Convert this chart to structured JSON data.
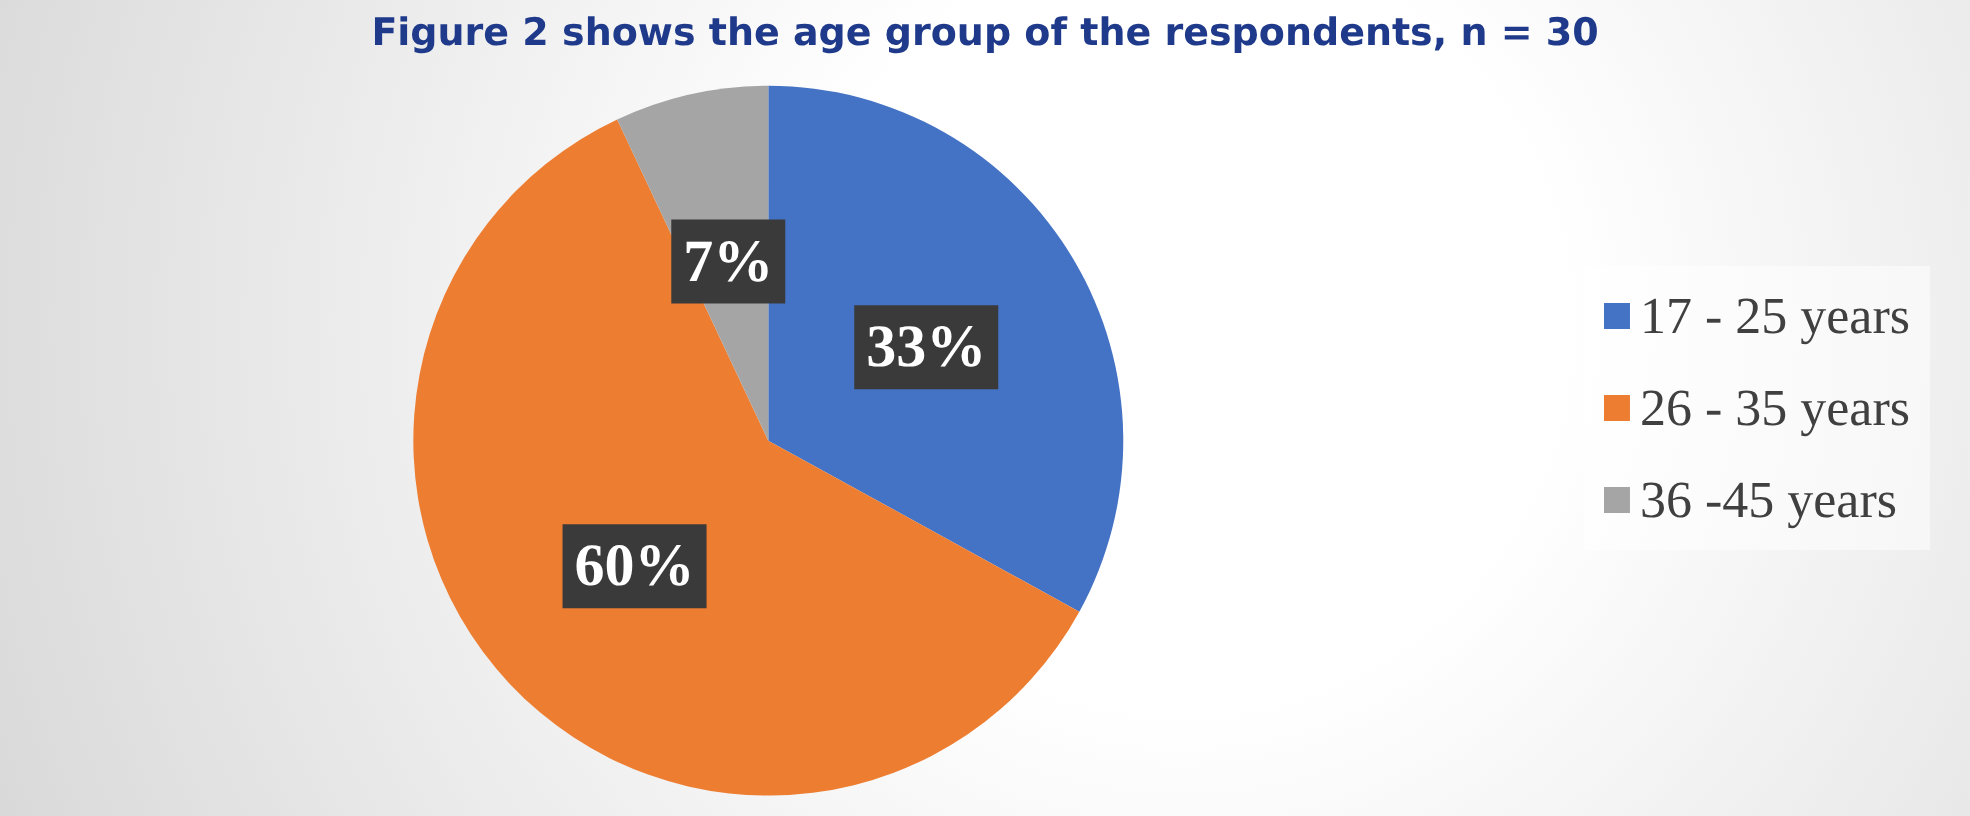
{
  "chart_data": {
    "type": "pie",
    "title": "Figure 2 shows the age group of the respondents, n = 30",
    "categories": [
      "17 - 25 years",
      "26 - 35 years",
      "36 -45 years"
    ],
    "values": [
      33,
      60,
      7
    ],
    "colors": [
      "#4472c4",
      "#ed7d31",
      "#a5a5a5"
    ],
    "value_labels": [
      "33%",
      "60%",
      "7%"
    ],
    "legend": "right"
  }
}
